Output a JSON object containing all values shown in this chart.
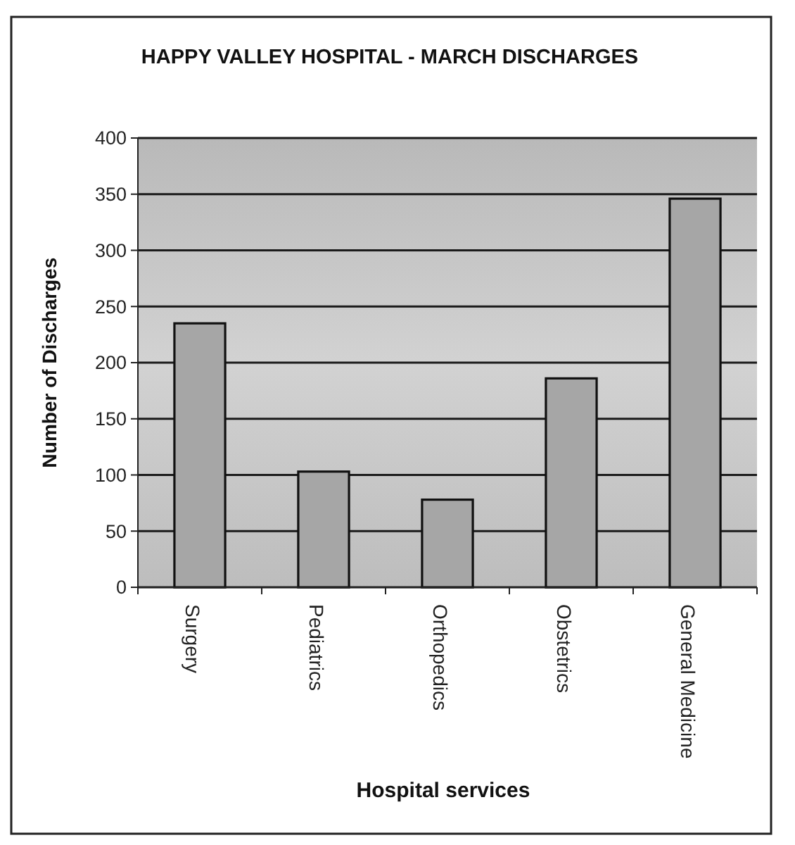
{
  "chart_data": {
    "type": "bar",
    "title": "HAPPY VALLEY HOSPITAL - MARCH DISCHARGES",
    "xlabel": "Hospital services",
    "ylabel": "Number of Discharges",
    "categories": [
      "Surgery",
      "Pediatrics",
      "Orthopedics",
      "Obstetrics",
      "General Medicine"
    ],
    "values": [
      235,
      103,
      78,
      186,
      346
    ],
    "color": "#a6a6a6",
    "ylim": [
      0,
      400
    ],
    "yticks": [
      0,
      50,
      100,
      150,
      200,
      250,
      300,
      350,
      400
    ],
    "grid": "y"
  }
}
